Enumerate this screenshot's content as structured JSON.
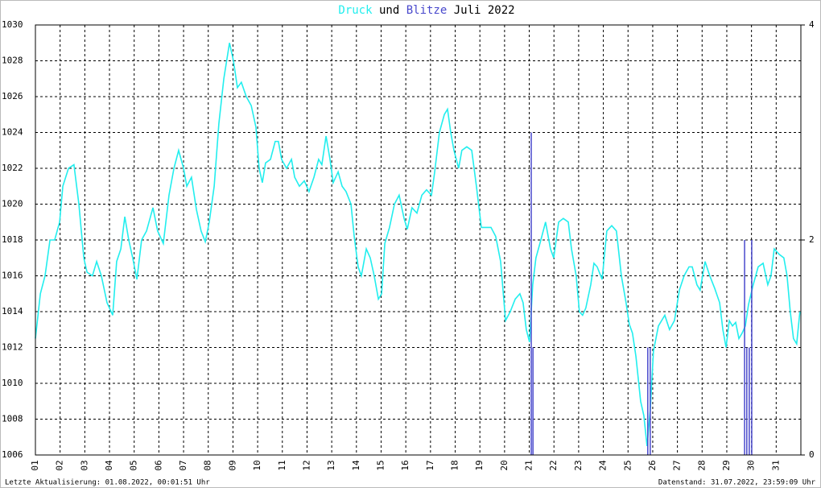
{
  "chart_data": {
    "type": "line",
    "title_joiner": "und",
    "title_suffix": "Juli 2022",
    "footer_left": "Letzte Aktualisierung: 01.08.2022, 00:01:51 Uhr",
    "footer_right": "Datenstand: 31.07.2022, 23:59:09 Uhr",
    "xlim": [
      1,
      32
    ],
    "xticks": [
      {
        "value": 1,
        "label": "01"
      },
      {
        "value": 2,
        "label": "02"
      },
      {
        "value": 3,
        "label": "03"
      },
      {
        "value": 4,
        "label": "04"
      },
      {
        "value": 5,
        "label": "05"
      },
      {
        "value": 6,
        "label": "06"
      },
      {
        "value": 7,
        "label": "07"
      },
      {
        "value": 8,
        "label": "08"
      },
      {
        "value": 9,
        "label": "09"
      },
      10,
      11,
      12,
      13,
      14,
      15,
      16,
      17,
      18,
      19,
      20,
      21,
      22,
      23,
      24,
      25,
      26,
      27,
      28,
      29,
      30,
      31
    ],
    "ylim": [
      1006,
      1030
    ],
    "yticks": [
      1006,
      1008,
      1010,
      1012,
      1014,
      1016,
      1018,
      1020,
      1022,
      1024,
      1026,
      1028,
      1030
    ],
    "y2lim": [
      0,
      4
    ],
    "y2ticks": [
      0,
      2,
      4
    ],
    "grid": true,
    "series": [
      {
        "name": "Druck",
        "color": "#22eeee",
        "type": "line",
        "x": [
          1.0,
          1.2,
          1.39,
          1.59,
          1.78,
          1.98,
          2.11,
          2.34,
          2.56,
          2.76,
          2.96,
          3.09,
          3.31,
          3.48,
          3.67,
          3.9,
          4.13,
          4.29,
          4.46,
          4.62,
          4.78,
          4.94,
          5.11,
          5.3,
          5.5,
          5.76,
          5.95,
          6.18,
          6.41,
          6.61,
          6.8,
          7.0,
          7.13,
          7.32,
          7.52,
          7.71,
          7.88,
          8.04,
          8.24,
          8.43,
          8.63,
          8.86,
          9.02,
          9.18,
          9.34,
          9.54,
          9.74,
          9.93,
          10.06,
          10.19,
          10.32,
          10.52,
          10.71,
          10.84,
          10.97,
          11.17,
          11.37,
          11.5,
          11.69,
          11.89,
          12.08,
          12.28,
          12.47,
          12.6,
          12.77,
          12.93,
          13.06,
          13.26,
          13.42,
          13.58,
          13.78,
          13.91,
          14.07,
          14.2,
          14.4,
          14.56,
          14.72,
          14.89,
          15.02,
          15.15,
          15.34,
          15.54,
          15.73,
          15.93,
          16.06,
          16.25,
          16.45,
          16.65,
          16.84,
          17.04,
          17.17,
          17.36,
          17.56,
          17.69,
          17.82,
          17.95,
          18.14,
          18.27,
          18.47,
          18.67,
          18.86,
          19.06,
          19.25,
          19.45,
          19.64,
          19.84,
          20.04,
          20.23,
          20.43,
          20.62,
          20.75,
          20.88,
          21.01,
          21.14,
          21.27,
          21.47,
          21.66,
          21.86,
          21.99,
          22.19,
          22.38,
          22.58,
          22.71,
          22.9,
          23.03,
          23.16,
          23.29,
          23.49,
          23.62,
          23.75,
          23.95,
          24.14,
          24.34,
          24.53,
          24.73,
          24.92,
          25.05,
          25.18,
          25.32,
          25.51,
          25.64,
          25.77,
          25.9,
          26.03,
          26.23,
          26.49,
          26.68,
          26.88,
          27.08,
          27.27,
          27.47,
          27.6,
          27.79,
          27.92,
          28.12,
          28.31,
          28.51,
          28.71,
          28.84,
          28.97,
          29.1,
          29.23,
          29.36,
          29.49,
          29.62,
          29.75,
          29.88,
          30.07,
          30.27,
          30.47,
          30.66,
          30.79,
          30.92,
          31.12,
          31.31,
          31.44,
          31.57,
          31.7,
          31.83,
          31.96
        ],
        "values": [
          1012.5,
          1015,
          1016,
          1018,
          1018,
          1019,
          1021,
          1022,
          1022.2,
          1020,
          1017,
          1016.2,
          1016,
          1016.8,
          1016,
          1014.5,
          1013.8,
          1016.8,
          1017.5,
          1019.3,
          1018,
          1017,
          1015.8,
          1018,
          1018.5,
          1019.8,
          1018.5,
          1017.8,
          1020.5,
          1022,
          1023,
          1022,
          1021,
          1021.5,
          1019.7,
          1018.5,
          1017.9,
          1019,
          1021,
          1024.5,
          1027,
          1029,
          1028,
          1026.5,
          1026.8,
          1026,
          1025.5,
          1024.3,
          1022,
          1021.2,
          1022.3,
          1022.5,
          1023.5,
          1023.5,
          1022.5,
          1022,
          1022.5,
          1021.5,
          1021,
          1021.3,
          1020.7,
          1021.5,
          1022.5,
          1022.2,
          1023.8,
          1022.5,
          1021.2,
          1021.8,
          1021,
          1020.7,
          1020,
          1018.2,
          1016.5,
          1016,
          1017.5,
          1017,
          1016,
          1014.7,
          1015,
          1017.8,
          1018.7,
          1020,
          1020.5,
          1019.2,
          1018.6,
          1019.8,
          1019.5,
          1020.5,
          1020.8,
          1020.5,
          1021.8,
          1024,
          1025,
          1025.3,
          1024,
          1023,
          1022,
          1023,
          1023.2,
          1023,
          1021,
          1018.7,
          1018.7,
          1018.7,
          1018.2,
          1016.8,
          1013.5,
          1014,
          1014.7,
          1015,
          1014.5,
          1013,
          1012.3,
          1015.5,
          1017,
          1018,
          1019,
          1017.5,
          1017,
          1019,
          1019.2,
          1019,
          1017.5,
          1016,
          1014,
          1013.8,
          1014.2,
          1015.5,
          1016.7,
          1016.5,
          1015.8,
          1018.5,
          1018.8,
          1018.5,
          1016,
          1014.5,
          1013.3,
          1012.8,
          1011.5,
          1009,
          1008.2,
          1006.5,
          1008.5,
          1011.8,
          1013.2,
          1013.8,
          1013,
          1013.5,
          1015.2,
          1016,
          1016.5,
          1016.5,
          1015.5,
          1015.2,
          1016.8,
          1016,
          1015.3,
          1014.5,
          1013,
          1012,
          1013.5,
          1013.2,
          1013.4,
          1012.5,
          1012.8,
          1013.2,
          1014.4,
          1015.5,
          1016.5,
          1016.7,
          1015.5,
          1016,
          1017.5,
          1017.2,
          1017,
          1016,
          1014,
          1012.5,
          1012.2,
          1014
        ]
      },
      {
        "name": "Blitze",
        "color": "#4848cc",
        "type": "bar",
        "axis": "y2",
        "x": [
          21.08,
          21.15,
          25.8,
          25.9,
          29.72,
          29.81,
          29.91,
          30.01
        ],
        "values": [
          3,
          1,
          1,
          1,
          2,
          1,
          1,
          2
        ]
      }
    ]
  }
}
